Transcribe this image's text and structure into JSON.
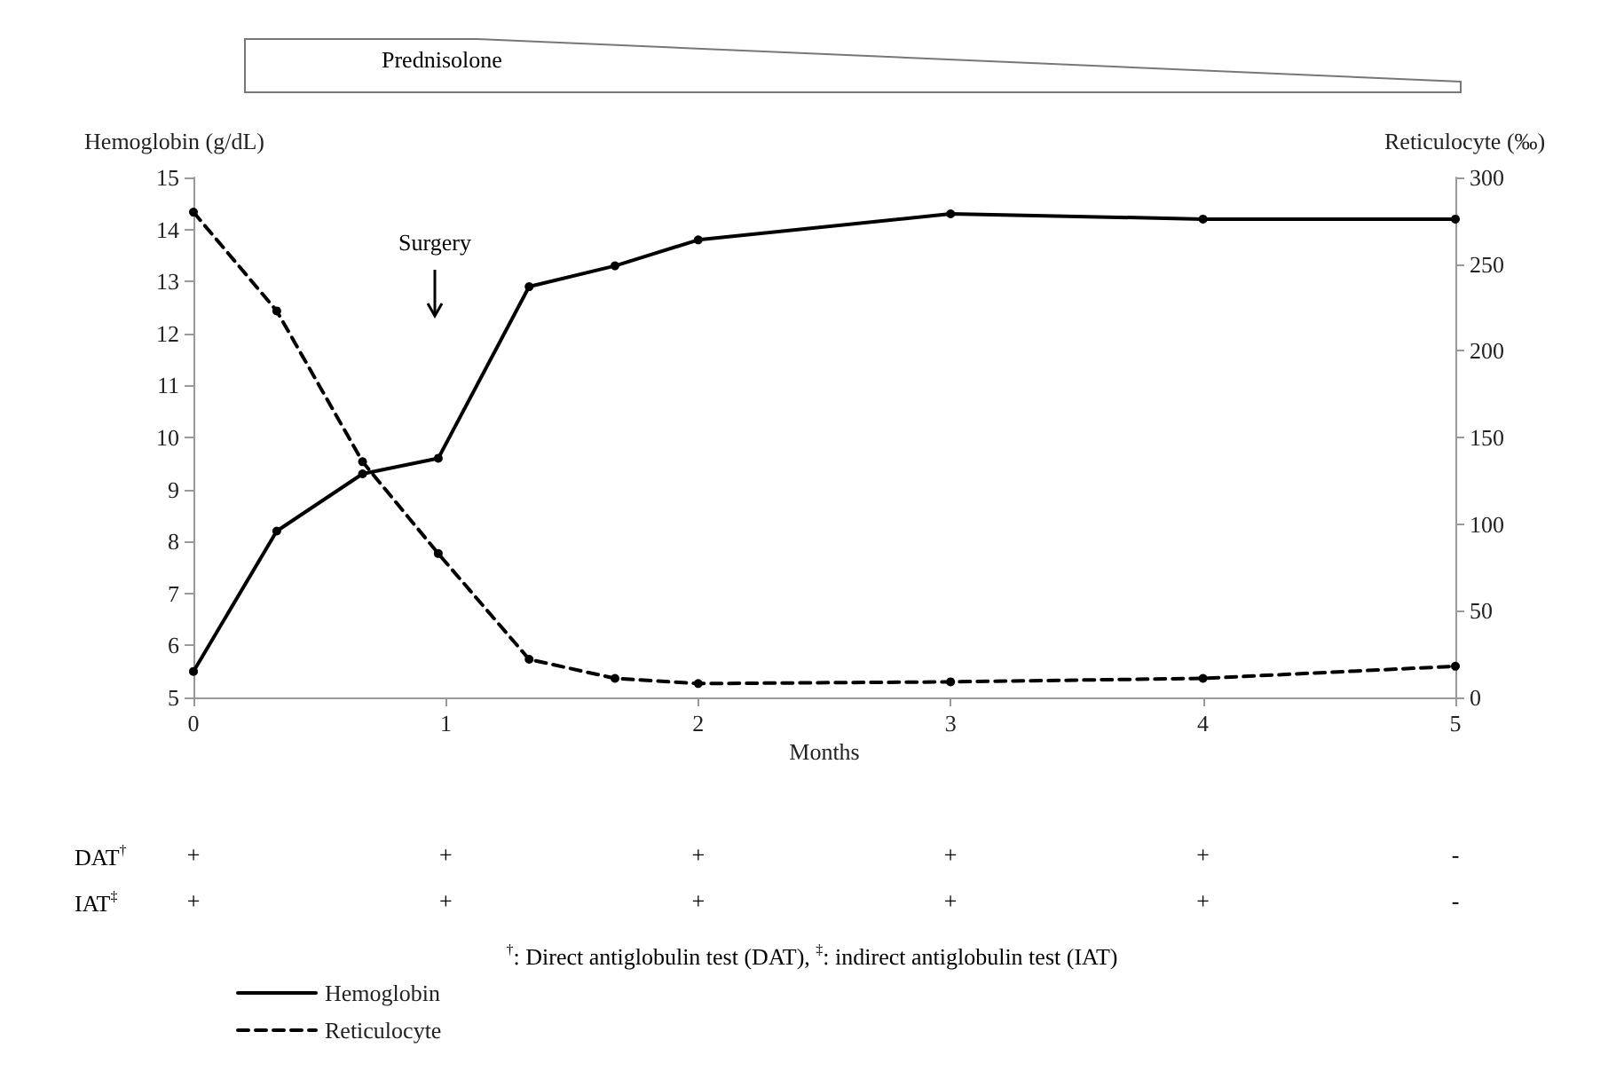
{
  "chart_data": {
    "type": "line",
    "xlabel": "Months",
    "ylabel": "Hemoglobin (g/dL)",
    "y2label": "Reticulocyte (‰)",
    "x": [
      0,
      0.33,
      0.67,
      0.97,
      1.33,
      1.67,
      2,
      3,
      4,
      5
    ],
    "series": [
      {
        "name": "Hemoglobin",
        "color": "#000000",
        "line_style": "solid",
        "values": [
          5.5,
          8.2,
          9.3,
          9.6,
          12.9,
          13.3,
          13.8,
          14.3,
          14.2,
          14.2
        ]
      },
      {
        "name": "Reticulocyte",
        "color": "#000000",
        "line_style": "dashed",
        "axis": "y2",
        "values": [
          280,
          223,
          136,
          83,
          22,
          11,
          8,
          9,
          11,
          18
        ]
      }
    ],
    "xlim": [
      0,
      5
    ],
    "xticks": [
      0,
      1,
      2,
      3,
      4,
      5
    ],
    "ylim": [
      5,
      15
    ],
    "yticks": [
      5,
      6,
      7,
      8,
      9,
      10,
      11,
      12,
      13,
      14,
      15
    ],
    "y2lim": [
      0,
      300
    ],
    "y2ticks": [
      0,
      50,
      100,
      150,
      200,
      250,
      300
    ],
    "marker": "circle",
    "grid": false,
    "legend": "bottom left",
    "annotations": [
      "Prednisolone",
      "Surgery",
      "DAT$^{†}$",
      "+",
      "+",
      "+",
      "+",
      "+",
      "-",
      "IAT$^{‡}$",
      "+",
      "+",
      "+",
      "+",
      "+",
      "-",
      "$^{†}$: Direct antiglobulin test (DAT), $^{‡}$: indirect antiglobulin test (IAT)"
    ]
  }
}
